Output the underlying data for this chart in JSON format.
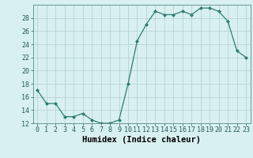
{
  "x": [
    0,
    1,
    2,
    3,
    4,
    5,
    6,
    7,
    8,
    9,
    10,
    11,
    12,
    13,
    14,
    15,
    16,
    17,
    18,
    19,
    20,
    21,
    22,
    23
  ],
  "y": [
    17,
    15,
    15,
    13,
    13,
    13.5,
    12.5,
    12,
    12,
    12.5,
    18,
    24.5,
    27,
    29,
    28.5,
    28.5,
    29,
    28.5,
    29.5,
    29.5,
    29,
    27.5,
    23,
    22
  ],
  "line_color": "#2e7d6e",
  "marker": "D",
  "marker_size": 2.0,
  "bg_color": "#d8f0f0",
  "grid_color": "#b8d4d4",
  "xlabel": "Humidex (Indice chaleur)",
  "ylim": [
    12,
    30
  ],
  "yticks": [
    12,
    14,
    16,
    18,
    20,
    22,
    24,
    26,
    28
  ],
  "xlim": [
    -0.5,
    23.5
  ],
  "xticks": [
    0,
    1,
    2,
    3,
    4,
    5,
    6,
    7,
    8,
    9,
    10,
    11,
    12,
    13,
    14,
    15,
    16,
    17,
    18,
    19,
    20,
    21,
    22,
    23
  ],
  "xlabel_fontsize": 7.5,
  "tick_fontsize": 6.0
}
